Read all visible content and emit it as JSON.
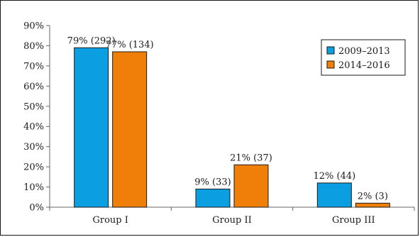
{
  "chart_data": {
    "type": "bar",
    "categories": [
      "Group I",
      "Group II",
      "Group III"
    ],
    "series": [
      {
        "name": "2009–2013",
        "color": "#0b9ee0",
        "values": [
          79,
          9,
          12
        ],
        "labels": [
          "79% (292)",
          "9% (33)",
          "12% (44)"
        ]
      },
      {
        "name": "2014–2016",
        "color": "#f07f0a",
        "values": [
          77,
          21,
          2
        ],
        "labels": [
          "77% (134)",
          "21% (37)",
          "2% (3)"
        ]
      }
    ],
    "ylim": [
      0,
      90
    ],
    "yticks": [
      "0%",
      "10%",
      "20%",
      "30%",
      "40%",
      "50%",
      "60%",
      "70%",
      "80%",
      "90%"
    ],
    "grid": false,
    "legend_position": "top-right"
  }
}
